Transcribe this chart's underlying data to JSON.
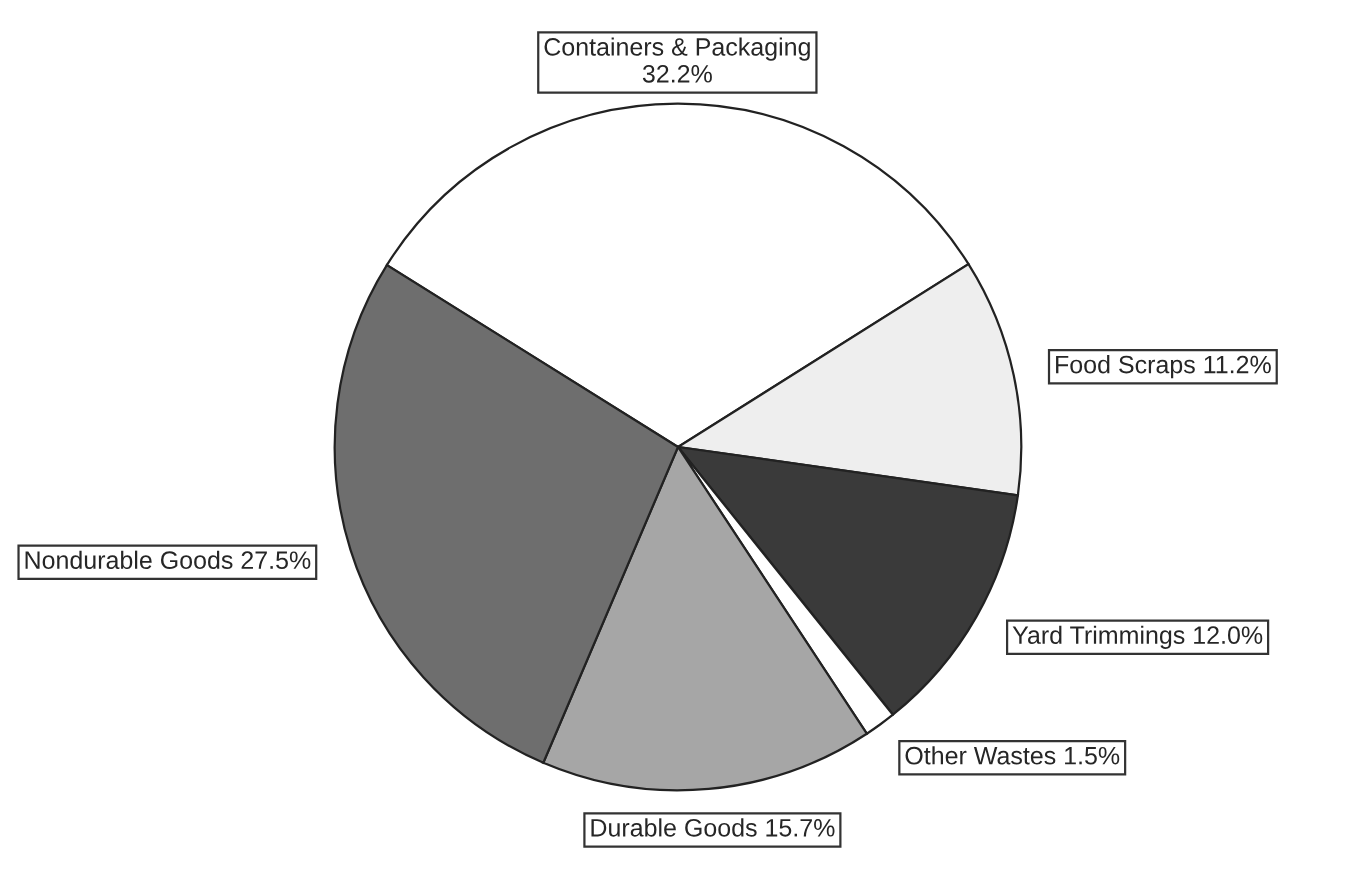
{
  "chart_data": {
    "type": "pie",
    "categories": [
      "Containers & Packaging",
      "Food Scraps",
      "Yard Trimmings",
      "Other Wastes",
      "Durable Goods",
      "Nondurable Goods"
    ],
    "values": [
      32.2,
      11.2,
      12.0,
      1.5,
      15.7,
      27.5
    ],
    "value_labels": [
      "32.2%",
      "11.2%",
      "12.0%",
      "1.5%",
      "15.7%",
      "27.5%"
    ],
    "colors": [
      "#ffffff",
      "#eeeeee",
      "#3a3a3a",
      "#ffffff",
      "#a6a6a6",
      "#6e6e6e"
    ],
    "legend": false
  }
}
